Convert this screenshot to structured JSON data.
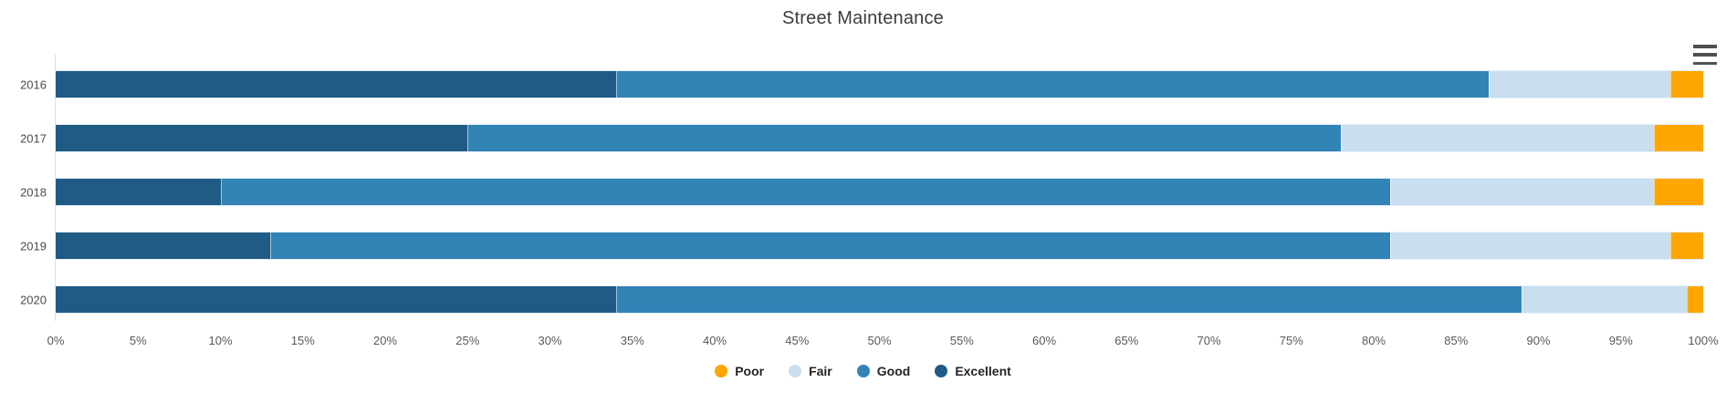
{
  "title": "Street Maintenance",
  "menu": {
    "icon": "hamburger-menu-icon"
  },
  "chart_data": {
    "type": "bar",
    "stacked": true,
    "orientation": "horizontal",
    "title": "Street Maintenance",
    "xlabel": "",
    "ylabel": "",
    "categories": [
      "2016",
      "2017",
      "2018",
      "2019",
      "2020"
    ],
    "series": [
      {
        "name": "Excellent",
        "color": "#1f5b84",
        "values": [
          34,
          25,
          10,
          13,
          34
        ]
      },
      {
        "name": "Good",
        "color": "#3283b6",
        "values": [
          53,
          53,
          71,
          68,
          55
        ]
      },
      {
        "name": "Fair",
        "color": "#c9dff0",
        "values": [
          11,
          19,
          16,
          17,
          10
        ]
      },
      {
        "name": "Poor",
        "color": "#ffa600",
        "values": [
          2,
          3,
          3,
          2,
          1
        ]
      }
    ],
    "xlim": [
      0,
      100
    ],
    "x_tick_step": 5,
    "x_tick_suffix": "%",
    "x_tick_labels": [
      "0%",
      "5%",
      "10%",
      "15%",
      "20%",
      "25%",
      "30%",
      "35%",
      "40%",
      "45%",
      "50%",
      "55%",
      "60%",
      "65%",
      "70%",
      "75%",
      "80%",
      "85%",
      "90%",
      "95%",
      "100%"
    ],
    "grid": false,
    "legend_position": "bottom",
    "legend_order": [
      "Poor",
      "Fair",
      "Good",
      "Excellent"
    ],
    "axis_line_color": "#cde3f2",
    "tick_label_color": "#59595b",
    "category_label_color": "#4b4b4d"
  }
}
